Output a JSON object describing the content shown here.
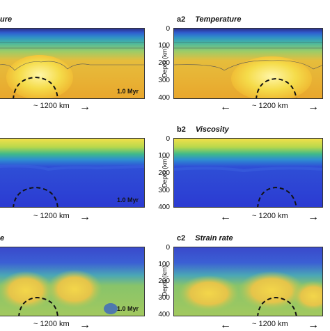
{
  "panels": {
    "a1": {
      "label": "ure",
      "time": "1.0 Myr"
    },
    "a2": {
      "id": "a2",
      "title": "Temperature"
    },
    "b1": {
      "time": "1.0 Myr"
    },
    "b2": {
      "id": "b2",
      "title": "Viscosity"
    },
    "c1": {
      "label": "e",
      "time": "1.0 Myr"
    },
    "c2": {
      "id": "c2",
      "title": "Strain rate"
    }
  },
  "axis": {
    "ylabel": "Depth (km)",
    "ticks": [
      "0",
      "100",
      "200",
      "300",
      "400"
    ]
  },
  "scale": {
    "label": "~ 1200 km",
    "left_arrow": "←",
    "right_arrow": "→"
  },
  "colors": {
    "hot_yellow": "#f2d84a",
    "warm_orange": "#e8a42c",
    "cool_blue": "#2b3fd6",
    "mid_green": "#44b47a",
    "top_blue": "#3a4acb"
  }
}
